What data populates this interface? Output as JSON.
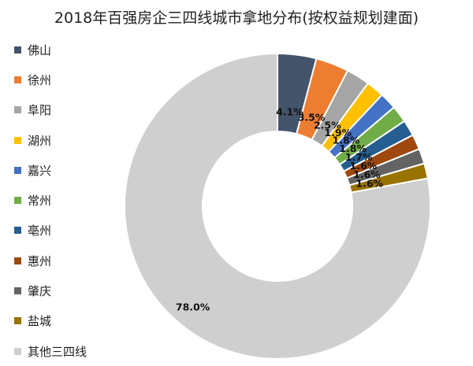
{
  "chart_data": {
    "type": "pie",
    "title": "2018年百强房企三四线城市拿地分布(按权益规划建面)",
    "legend_position": "left",
    "slices": [
      {
        "label": "佛山",
        "value": 4.1,
        "display": "4.1%",
        "color": "#44546A"
      },
      {
        "label": "徐州",
        "value": 3.5,
        "display": "3.5%",
        "color": "#ED7D31"
      },
      {
        "label": "阜阳",
        "value": 2.5,
        "display": "2.5%",
        "color": "#A5A5A5"
      },
      {
        "label": "湖州",
        "value": 1.9,
        "display": "1.9%",
        "color": "#FFC000"
      },
      {
        "label": "嘉兴",
        "value": 1.8,
        "display": "1.8%",
        "color": "#4472C4"
      },
      {
        "label": "常州",
        "value": 1.8,
        "display": "1.8%",
        "color": "#70AD47"
      },
      {
        "label": "亳州",
        "value": 1.7,
        "display": "1.7%",
        "color": "#255E91"
      },
      {
        "label": "惠州",
        "value": 1.6,
        "display": "1.6%",
        "color": "#9E480E"
      },
      {
        "label": "肇庆",
        "value": 1.6,
        "display": "1.6%",
        "color": "#636363"
      },
      {
        "label": "盐城",
        "value": 1.6,
        "display": "1.6%",
        "color": "#997300"
      },
      {
        "label": "其他三四线",
        "value": 78.0,
        "display": "78.0%",
        "color": "#CFCFCF"
      }
    ]
  }
}
